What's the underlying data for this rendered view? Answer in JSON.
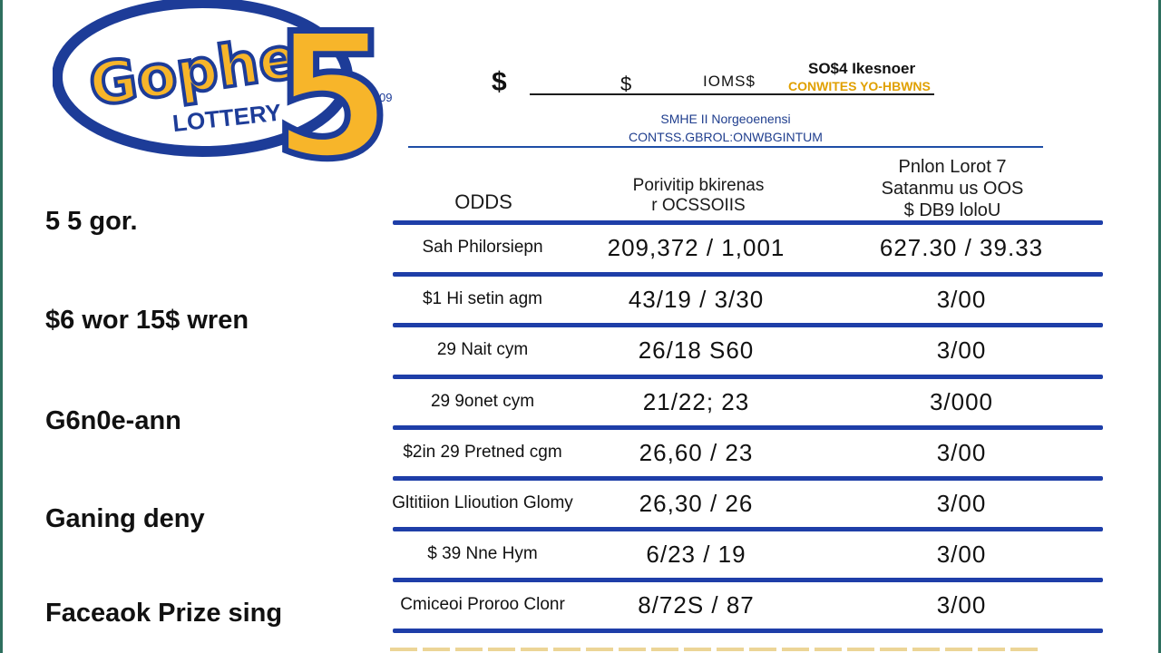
{
  "logo": {
    "word": "Gopher",
    "subword": "LOTTERY",
    "digit": "5",
    "mark": "09",
    "colors": {
      "navy": "#1d3c98",
      "gold": "#f7b52a"
    }
  },
  "header": {
    "dollar": "$",
    "s": "$",
    "io": "IOMS$",
    "right_line1": "SO$4 Ikesnoer",
    "right_line2": "CONWITES YO-HBWNS",
    "sub1": "SMHE II Norgeoenensi",
    "sub2": "CONTSS.GBROL:ONWBGINTUM"
  },
  "columns": {
    "odds": "ODDS",
    "mid_line1": "Porivitip bkirenas",
    "mid_line2": "r OCSSOIIS",
    "right_line1": "Pnlon Lorot 7",
    "right_line2": "Satanmu us OOS",
    "right_line3": "$ DB9 loloU"
  },
  "left_labels": [
    "5 5 gor.",
    "$6 wor 15$ wren",
    "G6n0e-ann",
    "Ganing deny",
    "Faceaok Prize sing"
  ],
  "rows": [
    {
      "name": "Sah Philorsiepn",
      "odds": "209,372 / 1,001",
      "prize": "627.30 / 39.33"
    },
    {
      "name": "$1 Hi setin agm",
      "odds": "43/19 / 3/30",
      "prize": "3/00"
    },
    {
      "name": "29 Nait cym",
      "odds": "26/18 S60",
      "prize": "3/00"
    },
    {
      "name": "29 9onet cym",
      "odds": "21/22; 23",
      "prize": "3/000"
    },
    {
      "name": "$2in 29 Pretned cgm",
      "odds": "26,60 / 23",
      "prize": "3/00"
    },
    {
      "name": "Gltitiion Llioution Glomy",
      "odds": "26,30 / 26",
      "prize": "3/00"
    },
    {
      "name": "$ 39 Nne Hym",
      "odds": "6/23 / 19",
      "prize": "3/00"
    },
    {
      "name": "Cmiceoi Proroo Clonr",
      "odds": "8/72S / 87",
      "prize": "3/00"
    }
  ]
}
